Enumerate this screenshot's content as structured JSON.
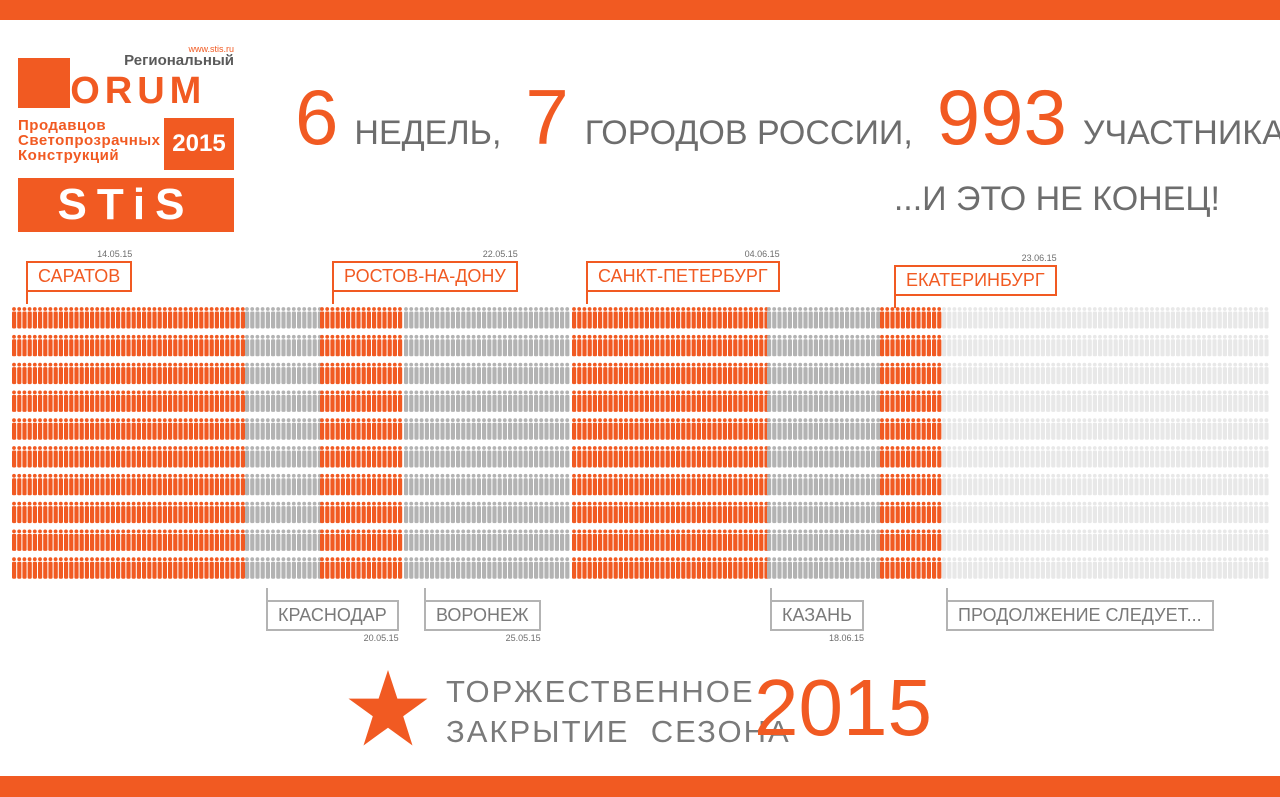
{
  "colors": {
    "accent": "#f15a22",
    "gray": "#b3b3b3",
    "future": "#e8e8e8",
    "text": "#6d6d6d"
  },
  "logo": {
    "url": "www.stis.ru",
    "regional": "Региональный",
    "forum": "FORUM",
    "line1": "Продавцов",
    "line2": "Светопрозрачных",
    "line3": "Конструкций",
    "year": "2015",
    "brand": "STiS"
  },
  "headline": {
    "num1": "6",
    "word1": "недель,",
    "num2": "7",
    "word2": "городов России,",
    "num3": "993",
    "word3": "участника...",
    "sub": "...и это не конец!"
  },
  "cities_top": [
    {
      "name": "САРАТОВ",
      "date": "14.05.15"
    },
    {
      "name": "РОСТОВ-НА-ДОНУ",
      "date": "22.05.15"
    },
    {
      "name": "САНКТ-ПЕТЕРБУРГ",
      "date": "04.06.15"
    },
    {
      "name": "ЕКАТЕРИНБУРГ",
      "date": "23.06.15"
    }
  ],
  "cities_bottom": [
    {
      "name": "КРАСНОДАР",
      "date": "20.05.15"
    },
    {
      "name": "ВОРОНЕЖ",
      "date": "25.05.15"
    },
    {
      "name": "КАЗАНЬ",
      "date": "18.06.15"
    },
    {
      "name": "ПРОДОЛЖЕНИЕ СЛЕДУЕТ...",
      "date": ""
    }
  ],
  "participants": {
    "total": 993,
    "segments": [
      {
        "city": "САРАТОВ",
        "color": "accent"
      },
      {
        "city": "КРАСНОДАР",
        "color": "gray"
      },
      {
        "city": "РОСТОВ-НА-ДОНУ",
        "color": "accent"
      },
      {
        "city": "ВОРОНЕЖ",
        "color": "gray"
      },
      {
        "city": "САНКТ-ПЕТЕРБУРГ",
        "color": "accent"
      },
      {
        "city": "КАЗАНЬ",
        "color": "gray"
      },
      {
        "city": "ЕКАТЕРИНБУРГ",
        "color": "accent"
      },
      {
        "city": "ПРОДОЛЖЕНИЕ СЛЕДУЕТ...",
        "color": "future"
      }
    ]
  },
  "footer": {
    "star_icon": "star-icon",
    "closing_line1": "ТОРЖЕСТВЕННОЕ",
    "closing_line2": "ЗАКРЫТИЕ  СЕЗОНА",
    "year": "2015"
  }
}
